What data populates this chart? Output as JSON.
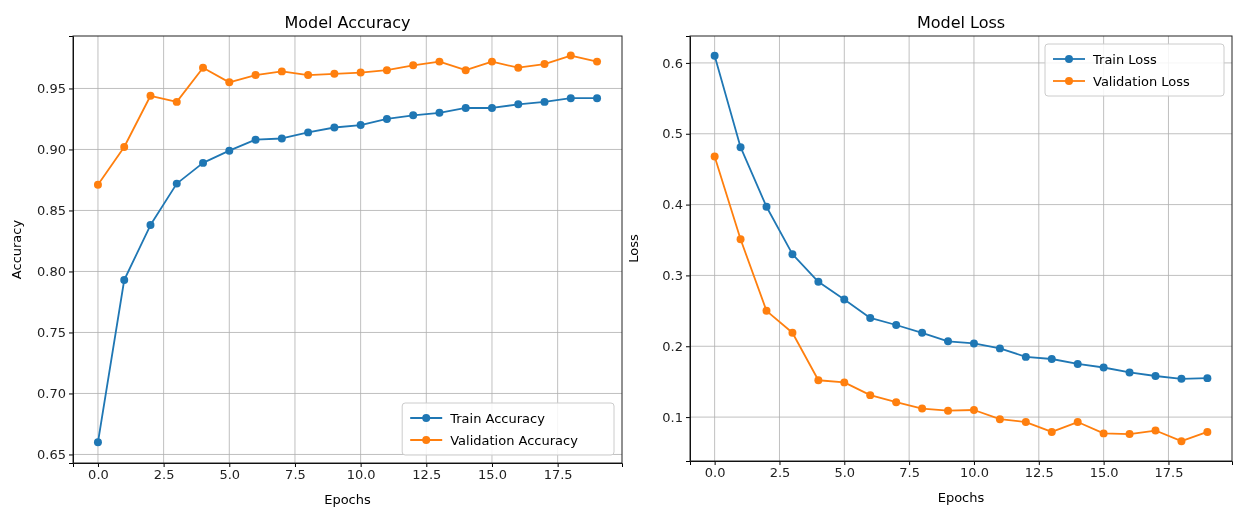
{
  "chart_data": [
    {
      "type": "line",
      "title": "Model Accuracy",
      "xlabel": "Epochs",
      "ylabel": "Accuracy",
      "x": [
        0,
        1,
        2,
        3,
        4,
        5,
        6,
        7,
        8,
        9,
        10,
        11,
        12,
        13,
        14,
        15,
        16,
        17,
        18,
        19
      ],
      "series": [
        {
          "name": "Train Accuracy",
          "color": "#1f77b4",
          "values": [
            0.66,
            0.793,
            0.838,
            0.872,
            0.889,
            0.899,
            0.908,
            0.909,
            0.914,
            0.918,
            0.92,
            0.925,
            0.928,
            0.93,
            0.934,
            0.934,
            0.937,
            0.939,
            0.942,
            0.942
          ]
        },
        {
          "name": "Validation Accuracy",
          "color": "#ff7f0e",
          "values": [
            0.871,
            0.902,
            0.944,
            0.939,
            0.967,
            0.955,
            0.961,
            0.964,
            0.961,
            0.962,
            0.963,
            0.965,
            0.969,
            0.972,
            0.965,
            0.972,
            0.967,
            0.97,
            0.977,
            0.972
          ]
        }
      ],
      "xlim": [
        -0.95,
        19.95
      ],
      "xticks": [
        {
          "value": 0,
          "label": "0.0"
        },
        {
          "value": 2.5,
          "label": "2.5"
        },
        {
          "value": 5,
          "label": "5.0"
        },
        {
          "value": 7.5,
          "label": "7.5"
        },
        {
          "value": 10,
          "label": "10.0"
        },
        {
          "value": 12.5,
          "label": "12.5"
        },
        {
          "value": 15,
          "label": "15.0"
        },
        {
          "value": 17.5,
          "label": "17.5"
        }
      ],
      "ylim": [
        0.643,
        0.993
      ],
      "yticks": [
        0.65,
        {
          "value": 0.7,
          "label": "0.70"
        },
        0.75,
        {
          "value": 0.8,
          "label": "0.80"
        },
        0.85,
        {
          "value": 0.9,
          "label": "0.90"
        },
        0.95
      ],
      "grid": true,
      "legend": "bottom right",
      "marker": "circle",
      "line_style": "solid"
    },
    {
      "type": "line",
      "title": "Model Loss",
      "xlabel": "Epochs",
      "ylabel": "Loss",
      "x": [
        0,
        1,
        2,
        3,
        4,
        5,
        6,
        7,
        8,
        9,
        10,
        11,
        12,
        13,
        14,
        15,
        16,
        17,
        18,
        19
      ],
      "series": [
        {
          "name": "Train Loss",
          "color": "#1f77b4",
          "values": [
            0.61,
            0.481,
            0.397,
            0.33,
            0.291,
            0.266,
            0.24,
            0.23,
            0.219,
            0.207,
            0.204,
            0.197,
            0.185,
            0.182,
            0.175,
            0.17,
            0.163,
            0.158,
            0.154,
            0.155
          ]
        },
        {
          "name": "Validation Loss",
          "color": "#ff7f0e",
          "values": [
            0.468,
            0.351,
            0.25,
            0.219,
            0.152,
            0.149,
            0.131,
            0.121,
            0.112,
            0.109,
            0.11,
            0.097,
            0.093,
            0.079,
            0.093,
            0.077,
            0.076,
            0.081,
            0.066,
            0.079
          ]
        }
      ],
      "xlim": [
        -0.95,
        19.95
      ],
      "xticks": [
        {
          "value": 0,
          "label": "0.0"
        },
        {
          "value": 2.5,
          "label": "2.5"
        },
        {
          "value": 5,
          "label": "5.0"
        },
        {
          "value": 7.5,
          "label": "7.5"
        },
        {
          "value": 10,
          "label": "10.0"
        },
        {
          "value": 12.5,
          "label": "12.5"
        },
        {
          "value": 15,
          "label": "15.0"
        },
        {
          "value": 17.5,
          "label": "17.5"
        }
      ],
      "ylim": [
        0.038,
        0.638
      ],
      "yticks": [
        0.1,
        0.2,
        0.3,
        0.4,
        0.5,
        0.6
      ],
      "grid": true,
      "legend": "top right",
      "marker": "circle",
      "line_style": "solid"
    }
  ]
}
